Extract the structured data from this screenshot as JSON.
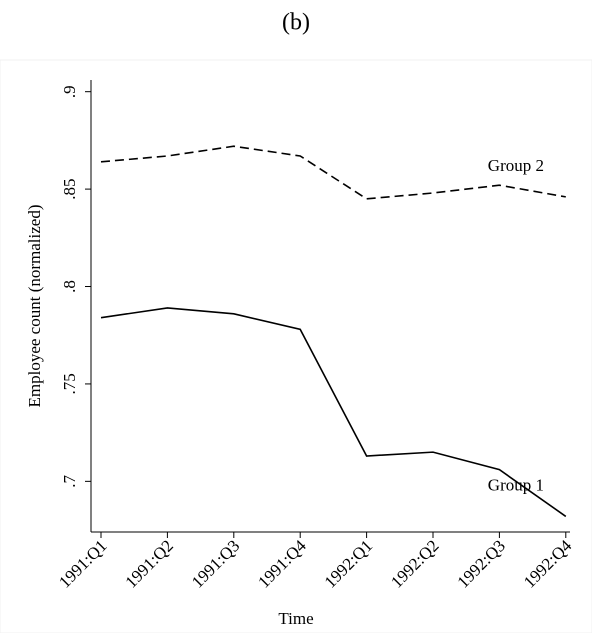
{
  "chart_data": {
    "type": "line",
    "title": "(b)",
    "x_label": "Time",
    "y_label": "Employee count (normalized)",
    "categories": [
      "1991:Q1",
      "1991:Q2",
      "1991:Q3",
      "1991:Q4",
      "1992:Q1",
      "1992:Q2",
      "1992:Q3",
      "1992:Q4"
    ],
    "series": [
      {
        "name": "Group 2",
        "color": "#000000",
        "dash": true,
        "values": [
          0.864,
          0.867,
          0.872,
          0.867,
          0.845,
          0.848,
          0.852,
          0.846
        ]
      },
      {
        "name": "Group 1",
        "color": "#000000",
        "dash": false,
        "values": [
          0.784,
          0.789,
          0.786,
          0.778,
          0.713,
          0.715,
          0.706,
          0.682
        ]
      }
    ],
    "ylim": [
      0.674,
      0.906
    ],
    "yticks": [
      {
        "value": 0.7,
        "label": ".7"
      },
      {
        "value": 0.75,
        "label": ".75"
      },
      {
        "value": 0.8,
        "label": ".8"
      },
      {
        "value": 0.85,
        "label": ".85"
      },
      {
        "value": 0.9,
        "label": ".9"
      }
    ],
    "grid": false
  }
}
